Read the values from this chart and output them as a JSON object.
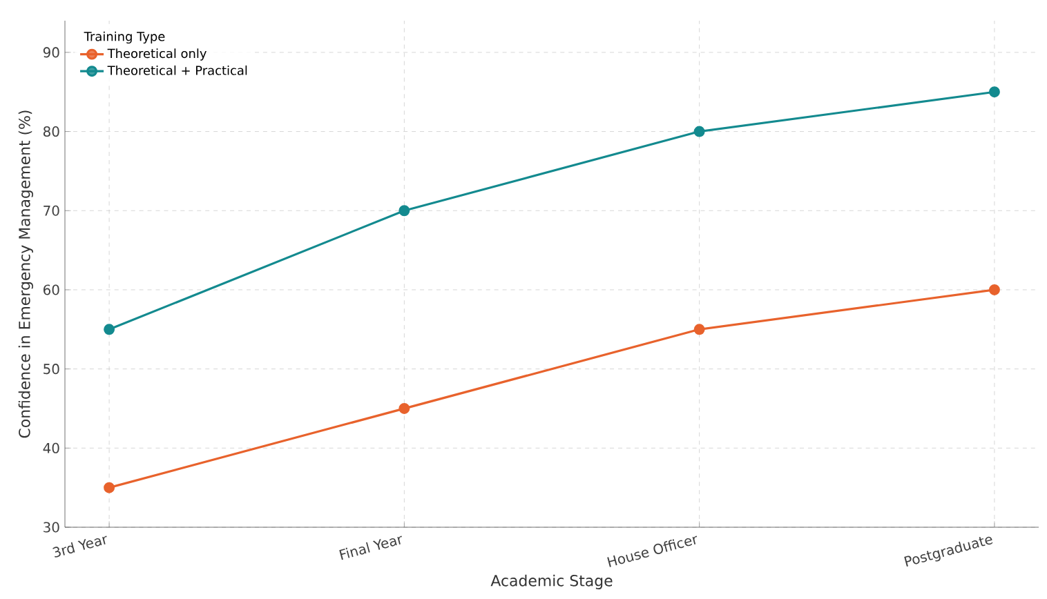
{
  "chart_data": {
    "type": "line",
    "xlabel": "Academic Stage",
    "ylabel": "Confidence in Emergency Management (%)",
    "legend_title": "Training Type",
    "categories": [
      "3rd Year",
      "Final Year",
      "House Officer",
      "Postgraduate"
    ],
    "series": [
      {
        "name": "Theoretical only",
        "color": "#e8622c",
        "values": [
          35,
          45,
          55,
          60
        ]
      },
      {
        "name": "Theoretical + Practical",
        "color": "#138a8f",
        "values": [
          55,
          70,
          80,
          85
        ]
      }
    ],
    "ylim": [
      30,
      94
    ],
    "yticks": [
      30,
      40,
      50,
      60,
      70,
      80,
      90
    ],
    "grid": true,
    "legend": "top left",
    "marker": "circle",
    "line_style": "solid"
  }
}
